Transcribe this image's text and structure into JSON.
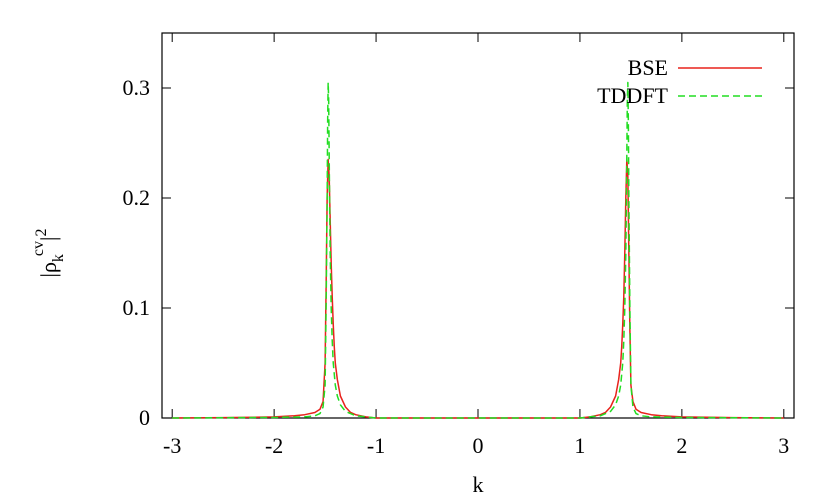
{
  "chart_data": {
    "type": "line",
    "xlabel": "k",
    "ylabel": {
      "base": "|ρ",
      "sub": "k",
      "sup": "cv",
      "tail": "|",
      "power": "2"
    },
    "xlim": [
      -3.1,
      3.1
    ],
    "ylim": [
      0,
      0.35
    ],
    "xticks": [
      {
        "value": -3,
        "label": "-3"
      },
      {
        "value": -2,
        "label": "-2"
      },
      {
        "value": -1,
        "label": "-1"
      },
      {
        "value": 0,
        "label": "0"
      },
      {
        "value": 1,
        "label": "1"
      },
      {
        "value": 2,
        "label": "2"
      },
      {
        "value": 3,
        "label": "3"
      }
    ],
    "yticks": [
      {
        "value": 0,
        "label": "0"
      },
      {
        "value": 0.1,
        "label": "0.1"
      },
      {
        "value": 0.2,
        "label": "0.2"
      },
      {
        "value": 0.3,
        "label": "0.3"
      }
    ],
    "grid": false,
    "legend_position": "top-right",
    "series": [
      {
        "name": "BSE",
        "color": "#e8221c",
        "dash": "solid",
        "x": [
          -3.0,
          -2.5,
          -2.0,
          -1.8,
          -1.7,
          -1.6,
          -1.55,
          -1.52,
          -1.5,
          -1.49,
          -1.48,
          -1.47,
          -1.46,
          -1.45,
          -1.44,
          -1.43,
          -1.42,
          -1.41,
          -1.4,
          -1.38,
          -1.35,
          -1.3,
          -1.25,
          -1.2,
          -1.1,
          -1.0,
          0.0,
          1.0,
          1.1,
          1.2,
          1.25,
          1.3,
          1.35,
          1.38,
          1.4,
          1.41,
          1.42,
          1.43,
          1.44,
          1.45,
          1.46,
          1.47,
          1.48,
          1.49,
          1.5,
          1.52,
          1.55,
          1.6,
          1.7,
          1.8,
          2.0,
          2.5,
          3.0
        ],
        "y": [
          0.0,
          0.0003,
          0.001,
          0.002,
          0.003,
          0.005,
          0.008,
          0.015,
          0.05,
          0.12,
          0.2,
          0.235,
          0.22,
          0.18,
          0.14,
          0.11,
          0.085,
          0.065,
          0.05,
          0.035,
          0.02,
          0.01,
          0.005,
          0.003,
          0.001,
          0.0,
          0.0,
          0.0,
          0.001,
          0.003,
          0.005,
          0.01,
          0.02,
          0.035,
          0.05,
          0.065,
          0.085,
          0.11,
          0.15,
          0.2,
          0.235,
          0.22,
          0.15,
          0.08,
          0.03,
          0.015,
          0.008,
          0.005,
          0.003,
          0.002,
          0.001,
          0.0003,
          0.0
        ]
      },
      {
        "name": "TDDFT",
        "color": "#22dd22",
        "dash": "dashed",
        "x": [
          -3.0,
          -2.0,
          -1.7,
          -1.6,
          -1.55,
          -1.52,
          -1.5,
          -1.49,
          -1.48,
          -1.475,
          -1.47,
          -1.465,
          -1.46,
          -1.455,
          -1.45,
          -1.44,
          -1.43,
          -1.42,
          -1.4,
          -1.38,
          -1.35,
          -1.3,
          -1.2,
          -1.0,
          0.0,
          1.0,
          1.2,
          1.3,
          1.35,
          1.38,
          1.4,
          1.42,
          1.43,
          1.44,
          1.45,
          1.455,
          1.46,
          1.465,
          1.47,
          1.475,
          1.48,
          1.49,
          1.5,
          1.52,
          1.55,
          1.6,
          1.7,
          2.0,
          3.0
        ],
        "y": [
          0.0,
          0.0005,
          0.001,
          0.002,
          0.004,
          0.01,
          0.03,
          0.1,
          0.2,
          0.27,
          0.305,
          0.29,
          0.24,
          0.19,
          0.15,
          0.1,
          0.07,
          0.05,
          0.03,
          0.02,
          0.012,
          0.006,
          0.002,
          0.0,
          0.0,
          0.0,
          0.002,
          0.006,
          0.012,
          0.02,
          0.03,
          0.05,
          0.07,
          0.1,
          0.15,
          0.19,
          0.24,
          0.29,
          0.305,
          0.27,
          0.2,
          0.1,
          0.03,
          0.01,
          0.004,
          0.002,
          0.001,
          0.0005,
          0.0
        ]
      }
    ]
  }
}
